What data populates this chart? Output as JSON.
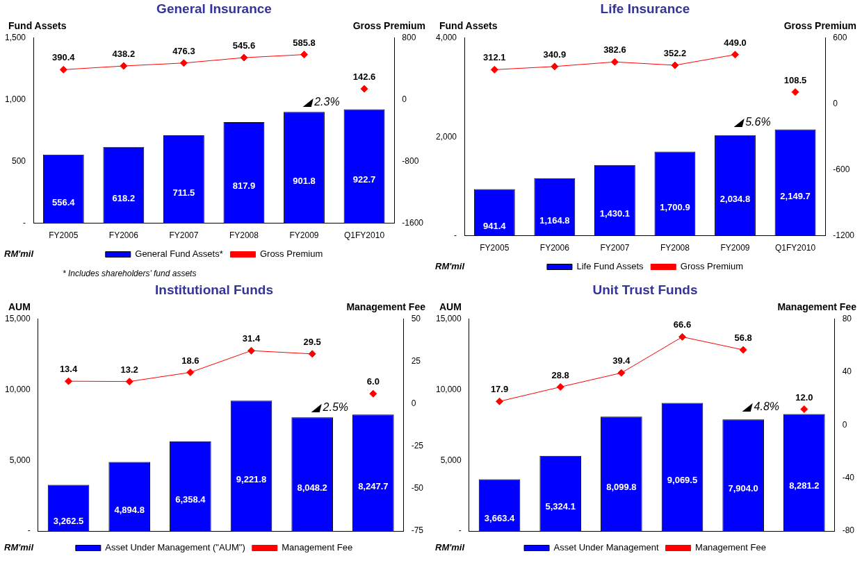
{
  "chart_data": [
    {
      "type": "bar",
      "title": "General Insurance",
      "ylabel": "Fund Assets",
      "y2label": "Gross Premium",
      "categories": [
        "FY2005",
        "FY2006",
        "FY2007",
        "FY2008",
        "FY2009",
        "Q1FY2010"
      ],
      "series": [
        {
          "name": "General Fund Assets*",
          "color": "#0000ff",
          "values": [
            556.4,
            618.2,
            711.5,
            817.9,
            901.8,
            922.7
          ],
          "value_labels": [
            "556.4",
            "618.2",
            "711.5",
            "817.9",
            "901.8",
            "922.7"
          ]
        },
        {
          "name": "Gross Premium",
          "type": "line",
          "axis": "y2",
          "color": "#ff0000",
          "values": [
            390.4,
            438.2,
            476.3,
            545.6,
            585.8,
            null
          ],
          "value_labels": [
            "390.4",
            "438.2",
            "476.3",
            "545.6",
            "585.8",
            null
          ]
        },
        {
          "type": "scatter",
          "axis": "y2",
          "color": "#ff0000",
          "values": [
            null,
            null,
            null,
            null,
            null,
            142.6
          ],
          "value_labels": [
            null,
            null,
            null,
            null,
            null,
            "142.6"
          ]
        }
      ],
      "ylim": [
        0,
        1500
      ],
      "yticks": [
        {
          "value": 0,
          "label": "-"
        },
        {
          "value": 500,
          "label": "500"
        },
        {
          "value": 1000,
          "label": "1,000"
        },
        {
          "value": 1500,
          "label": "1,500"
        }
      ],
      "y2lim": [
        -1600,
        800
      ],
      "y2ticks": [
        -1600,
        -800,
        0,
        800
      ],
      "marker": "diamond",
      "legend": "bottom",
      "grid": false,
      "annotations": [
        {
          "text": "◢ 2.3%",
          "x": "Q1FY2010",
          "y": 922.7
        },
        "RM'mil",
        "* Includes shareholders' fund assets"
      ]
    },
    {
      "type": "bar",
      "title": "Life Insurance",
      "ylabel": "Fund Assets",
      "y2label": "Gross Premium",
      "categories": [
        "FY2005",
        "FY2006",
        "FY2007",
        "FY2008",
        "FY2009",
        "Q1FY2010"
      ],
      "series": [
        {
          "name": "Life Fund Assets",
          "color": "#0000ff",
          "values": [
            941.4,
            1164.8,
            1430.1,
            1700.9,
            2034.8,
            2149.7
          ],
          "value_labels": [
            "941.4",
            "1,164.8",
            "1,430.1",
            "1,700.9",
            "2,034.8",
            "2,149.7"
          ]
        },
        {
          "name": "Gross Premium",
          "type": "line",
          "axis": "y2",
          "color": "#ff0000",
          "values": [
            312.1,
            340.9,
            382.6,
            352.2,
            449.0,
            null
          ],
          "value_labels": [
            "312.1",
            "340.9",
            "382.6",
            "352.2",
            "449.0",
            null
          ]
        },
        {
          "type": "scatter",
          "axis": "y2",
          "color": "#ff0000",
          "values": [
            null,
            null,
            null,
            null,
            null,
            108.5
          ],
          "value_labels": [
            null,
            null,
            null,
            null,
            null,
            "108.5"
          ]
        }
      ],
      "ylim": [
        0,
        4000
      ],
      "yticks": [
        {
          "value": 0,
          "label": "-"
        },
        {
          "value": 2000,
          "label": "2,000"
        },
        {
          "value": 4000,
          "label": "4,000"
        }
      ],
      "y2lim": [
        -1200,
        600
      ],
      "y2ticks": [
        -1200,
        -600,
        0,
        600
      ],
      "marker": "diamond",
      "legend": "bottom",
      "grid": false,
      "annotations": [
        {
          "text": "◢ 5.6%",
          "x": "Q1FY2010",
          "y": 2149.7
        },
        "RM'mil"
      ]
    },
    {
      "type": "bar",
      "title": "Institutional Funds",
      "ylabel": "AUM",
      "y2label": "Management Fee",
      "categories": [
        "FY2005",
        "FY2006",
        "FY2007",
        "FY2008",
        "FY2009",
        "Q1FY2010"
      ],
      "tick_labels": "y",
      "series": [
        {
          "name": "Asset Under Management (\"AUM\")",
          "color": "#0000ff",
          "values": [
            3262.5,
            4894.8,
            6358.4,
            9221.8,
            8048.2,
            8247.7
          ],
          "value_labels": [
            "3,262.5",
            "4,894.8",
            "6,358.4",
            "9,221.8",
            "8,048.2",
            "8,247.7"
          ]
        },
        {
          "name": "Management Fee",
          "type": "line",
          "axis": "y2",
          "color": "#ff0000",
          "values": [
            13.4,
            13.2,
            18.6,
            31.4,
            29.5,
            null
          ],
          "value_labels": [
            "13.4",
            "13.2",
            "18.6",
            "31.4",
            "29.5",
            null
          ]
        },
        {
          "type": "scatter",
          "axis": "y2",
          "color": "#ff0000",
          "values": [
            null,
            null,
            null,
            null,
            null,
            6.0
          ],
          "value_labels": [
            null,
            null,
            null,
            null,
            null,
            "6.0"
          ]
        }
      ],
      "ylim": [
        0,
        15000
      ],
      "yticks": [
        {
          "value": 0,
          "label": "-"
        },
        {
          "value": 5000,
          "label": "5,000"
        },
        {
          "value": 10000,
          "label": "10,000"
        },
        {
          "value": 15000,
          "label": "15,000"
        }
      ],
      "y2lim": [
        -75,
        50
      ],
      "y2ticks": [
        -75,
        -50,
        -25,
        0,
        25,
        50
      ],
      "marker": "diamond",
      "legend": "bottom",
      "grid": false,
      "annotations": [
        {
          "text": "◢ 2.5%",
          "x": "Q1FY2010",
          "y": 8247.7
        },
        "RM'mil"
      ]
    },
    {
      "type": "bar",
      "title": "Unit Trust Funds",
      "ylabel": "AUM",
      "y2label": "Management Fee",
      "categories": [
        "FY2005",
        "FY2006",
        "FY2007",
        "FY2008",
        "FY2009",
        "Q1FY2010"
      ],
      "tick_labels": "y",
      "series": [
        {
          "name": "Asset Under Management",
          "color": "#0000ff",
          "values": [
            3663.4,
            5324.1,
            8099.8,
            9069.5,
            7904.0,
            8281.2
          ],
          "value_labels": [
            "3,663.4",
            "5,324.1",
            "8,099.8",
            "9,069.5",
            "7,904.0",
            "8,281.2"
          ]
        },
        {
          "name": "Management Fee",
          "type": "line",
          "axis": "y2",
          "color": "#ff0000",
          "values": [
            17.9,
            28.8,
            39.4,
            66.6,
            56.8,
            null
          ],
          "value_labels": [
            "17.9",
            "28.8",
            "39.4",
            "66.6",
            "56.8",
            null
          ]
        },
        {
          "type": "scatter",
          "axis": "y2",
          "color": "#ff0000",
          "values": [
            null,
            null,
            null,
            null,
            null,
            12.0
          ],
          "value_labels": [
            null,
            null,
            null,
            null,
            null,
            "12.0"
          ]
        }
      ],
      "ylim": [
        0,
        15000
      ],
      "yticks": [
        {
          "value": 0,
          "label": "-"
        },
        {
          "value": 5000,
          "label": "5,000"
        },
        {
          "value": 10000,
          "label": "10,000"
        },
        {
          "value": 15000,
          "label": "15,000"
        }
      ],
      "y2lim": [
        -80,
        80
      ],
      "y2ticks": [
        -80,
        -40,
        0,
        40,
        80
      ],
      "marker": "diamond",
      "legend": "bottom",
      "grid": false,
      "annotations": [
        {
          "text": "◢ 4.8%",
          "x": "Q1FY2010",
          "y": 8281.2
        },
        "RM'mil"
      ]
    }
  ]
}
